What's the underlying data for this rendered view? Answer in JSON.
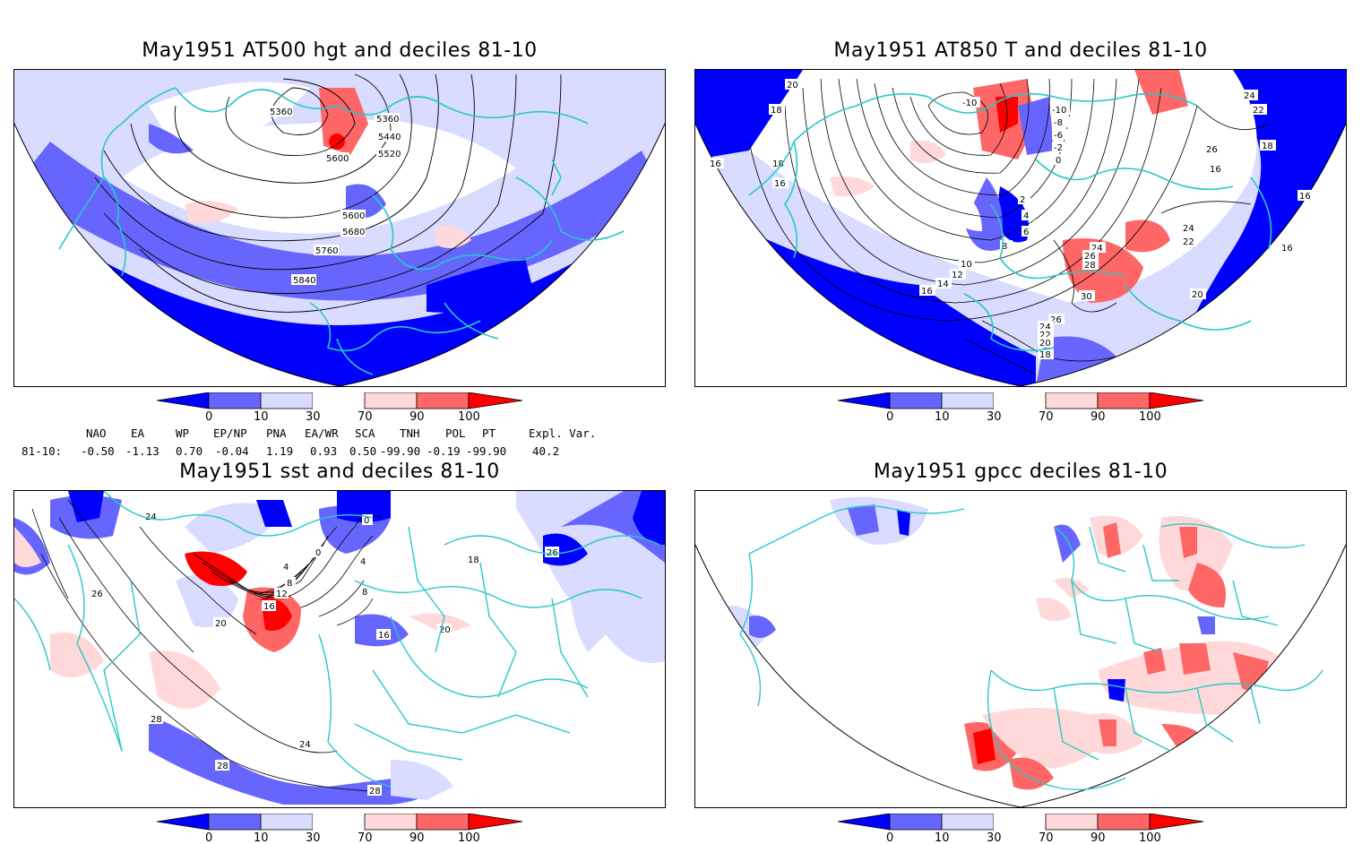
{
  "panels": [
    {
      "title": "May1951 AT500 hgt and deciles 81-10",
      "contour_labels": [
        "5360",
        "5360",
        "5440",
        "5520",
        "5600",
        "5600",
        "5680",
        "5760",
        "5840"
      ]
    },
    {
      "title": "May1951 AT850 T and deciles 81-10",
      "contour_labels": [
        "20",
        "18",
        "18",
        "16",
        "16",
        "-10",
        "-10",
        "-8",
        "-6",
        "-2",
        "0",
        "2",
        "4",
        "6",
        "8",
        "10",
        "12",
        "14",
        "16",
        "24",
        "26",
        "28",
        "30",
        "26",
        "24",
        "22",
        "20",
        "18",
        "26",
        "24",
        "22",
        "16",
        "18",
        "16",
        "24",
        "22",
        "20",
        "16"
      ]
    },
    {
      "title": "May1951 sst and deciles 81-10",
      "contour_labels": [
        "24",
        "26",
        "28",
        "20",
        "24",
        "28",
        "28",
        "0",
        "0",
        "4",
        "4",
        "8",
        "8",
        "12",
        "16",
        "16",
        "18",
        "20",
        "26"
      ]
    },
    {
      "title": "May1951 gpcc deciles 81-10",
      "contour_labels": []
    }
  ],
  "colorbar": {
    "tick_labels": [
      "0",
      "10",
      "30",
      "70",
      "90",
      "100"
    ],
    "colors": [
      "#0000ff",
      "#6666ff",
      "#d9dbff",
      "#ffffff",
      "#ffd9d9",
      "#ff6666",
      "#ff0000"
    ]
  },
  "indices": {
    "headers": [
      "NAO",
      "EA",
      "WP",
      "EP/NP",
      "PNA",
      "EA/WR",
      "SCA",
      "TNH",
      "POL",
      "PT",
      "Expl. Var."
    ],
    "row_label": "81-10:",
    "values": [
      "-0.50",
      "-1.13",
      "0.70",
      "-0.04",
      "1.19",
      "0.93",
      "0.50",
      "-99.90",
      "-0.19",
      "-99.90",
      "40.2"
    ]
  }
}
